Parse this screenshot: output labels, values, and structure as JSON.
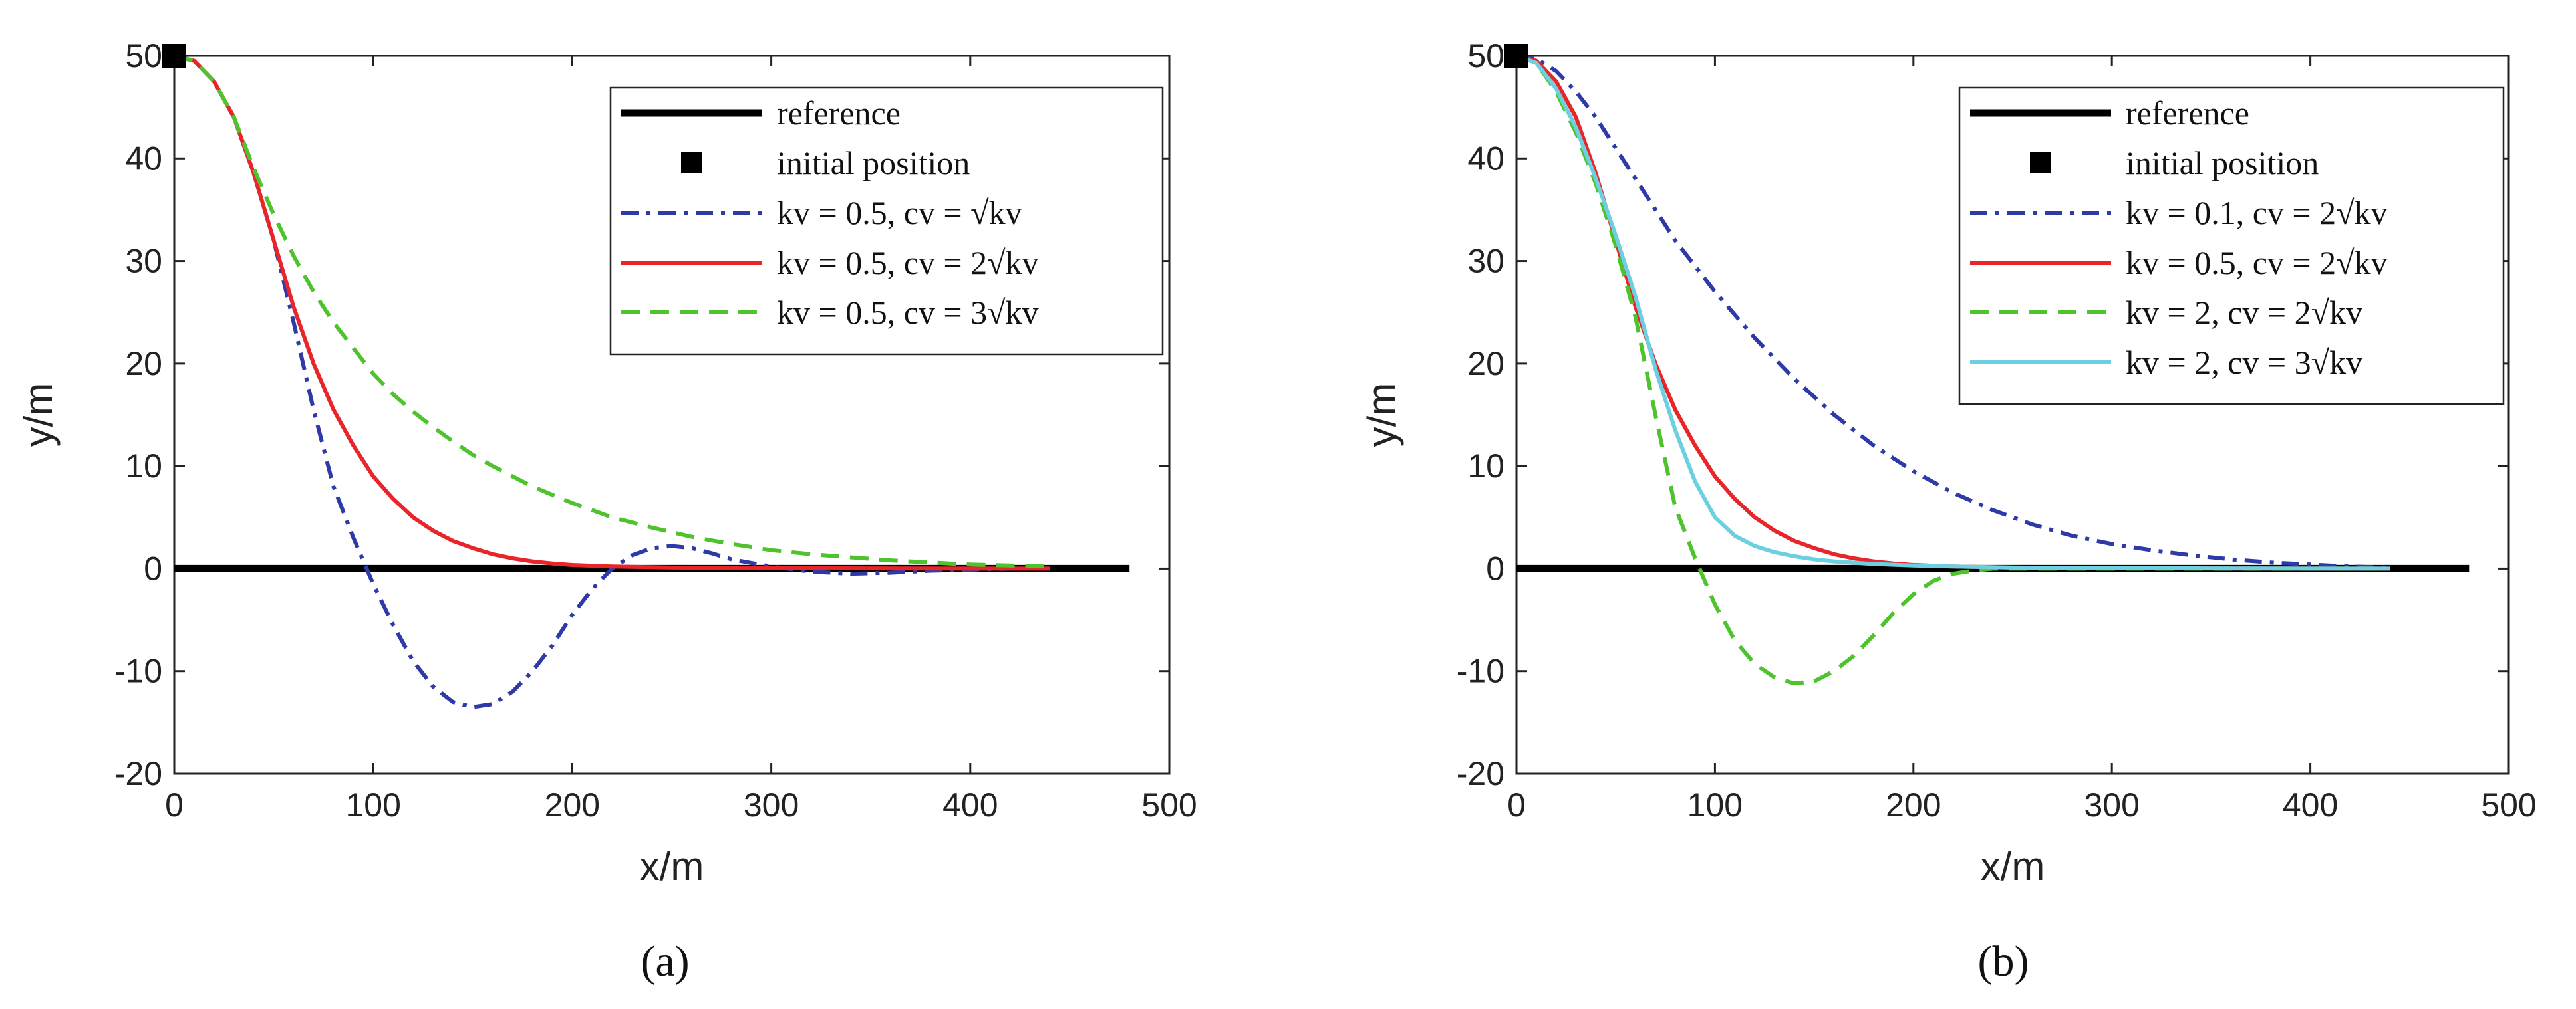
{
  "chart_data": [
    {
      "type": "line",
      "panel": "(a)",
      "caption": "(a)",
      "xlabel": "x/m",
      "ylabel": "y/m",
      "xlim": [
        0,
        500
      ],
      "ylim": [
        -20,
        50
      ],
      "xticks": [
        "0",
        "100",
        "200",
        "300",
        "400",
        "500"
      ],
      "yticks": [
        "-20",
        "-10",
        "0",
        "10",
        "20",
        "30",
        "40",
        "50"
      ],
      "legend": {
        "position": "top-right",
        "entries": [
          {
            "label": "reference",
            "style": "solid-thick",
            "color": "#000000"
          },
          {
            "label": "initial position",
            "style": "square-marker",
            "color": "#000000"
          },
          {
            "label": "kv = 0.5, cv = √kv",
            "style": "dashdot",
            "color": "#2d3aa8"
          },
          {
            "label": "kv = 0.5, cv = 2√kv",
            "style": "solid",
            "color": "#e8262a"
          },
          {
            "label": "kv = 0.5, cv = 3√kv",
            "style": "dashed",
            "color": "#4fc32e"
          }
        ]
      },
      "initial_position": {
        "x": 0,
        "y": 50
      },
      "series": [
        {
          "name": "reference",
          "color": "#000000",
          "style": "solid-thick",
          "x": [
            0,
            480
          ],
          "y": [
            0,
            0
          ]
        },
        {
          "name": "kv = 0.5, cv = √kv",
          "color": "#2d3aa8",
          "style": "dashdot",
          "x": [
            0,
            10,
            20,
            30,
            40,
            50,
            60,
            70,
            80,
            90,
            100,
            110,
            120,
            130,
            140,
            150,
            160,
            170,
            180,
            190,
            200,
            210,
            220,
            230,
            240,
            250,
            260,
            270,
            280,
            300,
            320,
            340,
            360,
            380,
            400,
            420,
            440
          ],
          "y": [
            50,
            49.5,
            47.5,
            44,
            38.5,
            32,
            24,
            15.5,
            8,
            3,
            -1.5,
            -5.5,
            -9,
            -11.5,
            -13,
            -13.5,
            -13.2,
            -12,
            -10,
            -7.5,
            -4.5,
            -2,
            0,
            1.3,
            2,
            2.2,
            2,
            1.5,
            0.9,
            0.2,
            -0.3,
            -0.5,
            -0.4,
            -0.2,
            -0.1,
            0,
            0
          ]
        },
        {
          "name": "kv = 0.5, cv = 2√kv",
          "color": "#e8262a",
          "style": "solid",
          "x": [
            0,
            10,
            20,
            30,
            40,
            50,
            60,
            70,
            80,
            90,
            100,
            110,
            120,
            130,
            140,
            150,
            160,
            170,
            180,
            190,
            200,
            220,
            250,
            300,
            350,
            400,
            440
          ],
          "y": [
            50,
            49.5,
            47.5,
            44,
            38.5,
            32,
            25.5,
            20,
            15.5,
            12,
            9,
            6.8,
            5,
            3.7,
            2.7,
            2,
            1.4,
            1,
            0.7,
            0.5,
            0.35,
            0.2,
            0.1,
            0.05,
            0.02,
            0,
            0
          ]
        },
        {
          "name": "kv = 0.5, cv = 3√kv",
          "color": "#4fc32e",
          "style": "dashed",
          "x": [
            0,
            10,
            20,
            30,
            40,
            50,
            60,
            70,
            80,
            90,
            100,
            110,
            120,
            130,
            140,
            150,
            160,
            170,
            180,
            190,
            200,
            220,
            240,
            260,
            280,
            300,
            320,
            340,
            360,
            380,
            400,
            420,
            440
          ],
          "y": [
            50,
            49.5,
            47.5,
            44,
            39,
            34.5,
            30.5,
            27,
            24,
            21.5,
            19,
            17,
            15.3,
            13.8,
            12.4,
            11.1,
            10,
            9,
            8,
            7.2,
            6.4,
            5,
            4,
            3.1,
            2.4,
            1.8,
            1.4,
            1.1,
            0.8,
            0.6,
            0.4,
            0.3,
            0.2
          ]
        }
      ]
    },
    {
      "type": "line",
      "panel": "(b)",
      "caption": "(b)",
      "xlabel": "x/m",
      "ylabel": "y/m",
      "xlim": [
        0,
        500
      ],
      "ylim": [
        -20,
        50
      ],
      "xticks": [
        "0",
        "100",
        "200",
        "300",
        "400",
        "500"
      ],
      "yticks": [
        "-20",
        "-10",
        "0",
        "10",
        "20",
        "30",
        "40",
        "50"
      ],
      "legend": {
        "position": "top-right",
        "entries": [
          {
            "label": "reference",
            "style": "solid-thick",
            "color": "#000000"
          },
          {
            "label": "initial position",
            "style": "square-marker",
            "color": "#000000"
          },
          {
            "label": "kv = 0.1, cv = 2√kv",
            "style": "dashdot",
            "color": "#2d3aa8"
          },
          {
            "label": "kv = 0.5, cv = 2√kv",
            "style": "solid",
            "color": "#e8262a"
          },
          {
            "label": "kv = 2, cv = 2√kv",
            "style": "dashed",
            "color": "#4fc32e"
          },
          {
            "label": "kv = 2, cv = 3√kv",
            "style": "solid",
            "color": "#6cd0e0"
          }
        ]
      },
      "initial_position": {
        "x": 0,
        "y": 50
      },
      "series": [
        {
          "name": "reference",
          "color": "#000000",
          "style": "solid-thick",
          "x": [
            0,
            480
          ],
          "y": [
            0,
            0
          ]
        },
        {
          "name": "kv = 0.1, cv = 2√kv",
          "color": "#2d3aa8",
          "style": "dashdot",
          "x": [
            0,
            10,
            20,
            30,
            40,
            50,
            60,
            70,
            80,
            90,
            100,
            120,
            140,
            160,
            180,
            200,
            220,
            240,
            260,
            280,
            300,
            320,
            340,
            360,
            380,
            400,
            420,
            440
          ],
          "y": [
            50,
            49.7,
            48.5,
            46.5,
            44,
            41,
            38,
            35,
            32,
            29.5,
            27,
            22.5,
            18.5,
            15,
            12,
            9.5,
            7.4,
            5.7,
            4.3,
            3.2,
            2.4,
            1.8,
            1.3,
            0.9,
            0.6,
            0.4,
            0.2,
            0.1
          ]
        },
        {
          "name": "kv = 0.5, cv = 2√kv",
          "color": "#e8262a",
          "style": "solid",
          "x": [
            0,
            10,
            20,
            30,
            40,
            50,
            60,
            70,
            80,
            90,
            100,
            110,
            120,
            130,
            140,
            150,
            160,
            170,
            180,
            190,
            200,
            220,
            250,
            300,
            350,
            400,
            440
          ],
          "y": [
            50,
            49.5,
            47.5,
            44,
            38.5,
            32,
            25.5,
            20,
            15.5,
            12,
            9,
            6.8,
            5,
            3.7,
            2.7,
            2,
            1.4,
            1,
            0.7,
            0.5,
            0.35,
            0.2,
            0.1,
            0.05,
            0.02,
            0,
            0
          ]
        },
        {
          "name": "kv = 2, cv = 2√kv",
          "color": "#4fc32e",
          "style": "dashed",
          "x": [
            0,
            10,
            20,
            30,
            40,
            50,
            60,
            70,
            80,
            90,
            100,
            110,
            120,
            130,
            140,
            150,
            160,
            170,
            180,
            190,
            200,
            210,
            220,
            230,
            240,
            260,
            300,
            350,
            400,
            440
          ],
          "y": [
            50,
            49.3,
            46.5,
            42.5,
            37.5,
            31.5,
            24.5,
            15,
            6,
            1,
            -3.5,
            -7,
            -9.3,
            -10.6,
            -11.2,
            -11,
            -10,
            -8.5,
            -6.5,
            -4.3,
            -2.5,
            -1.2,
            -0.5,
            -0.2,
            0,
            0,
            0,
            0,
            0,
            0
          ]
        },
        {
          "name": "kv = 2, cv = 3√kv",
          "color": "#6cd0e0",
          "style": "solid",
          "x": [
            0,
            10,
            20,
            30,
            40,
            50,
            60,
            70,
            80,
            90,
            100,
            110,
            120,
            130,
            140,
            150,
            160,
            180,
            200,
            220,
            250,
            300,
            350,
            400,
            440
          ],
          "y": [
            50,
            49.3,
            46.8,
            43,
            38,
            32.5,
            26.5,
            19.5,
            13.5,
            8.5,
            5,
            3.2,
            2.2,
            1.6,
            1.2,
            0.9,
            0.7,
            0.45,
            0.3,
            0.2,
            0.1,
            0.05,
            0.02,
            0,
            0
          ]
        }
      ]
    }
  ]
}
